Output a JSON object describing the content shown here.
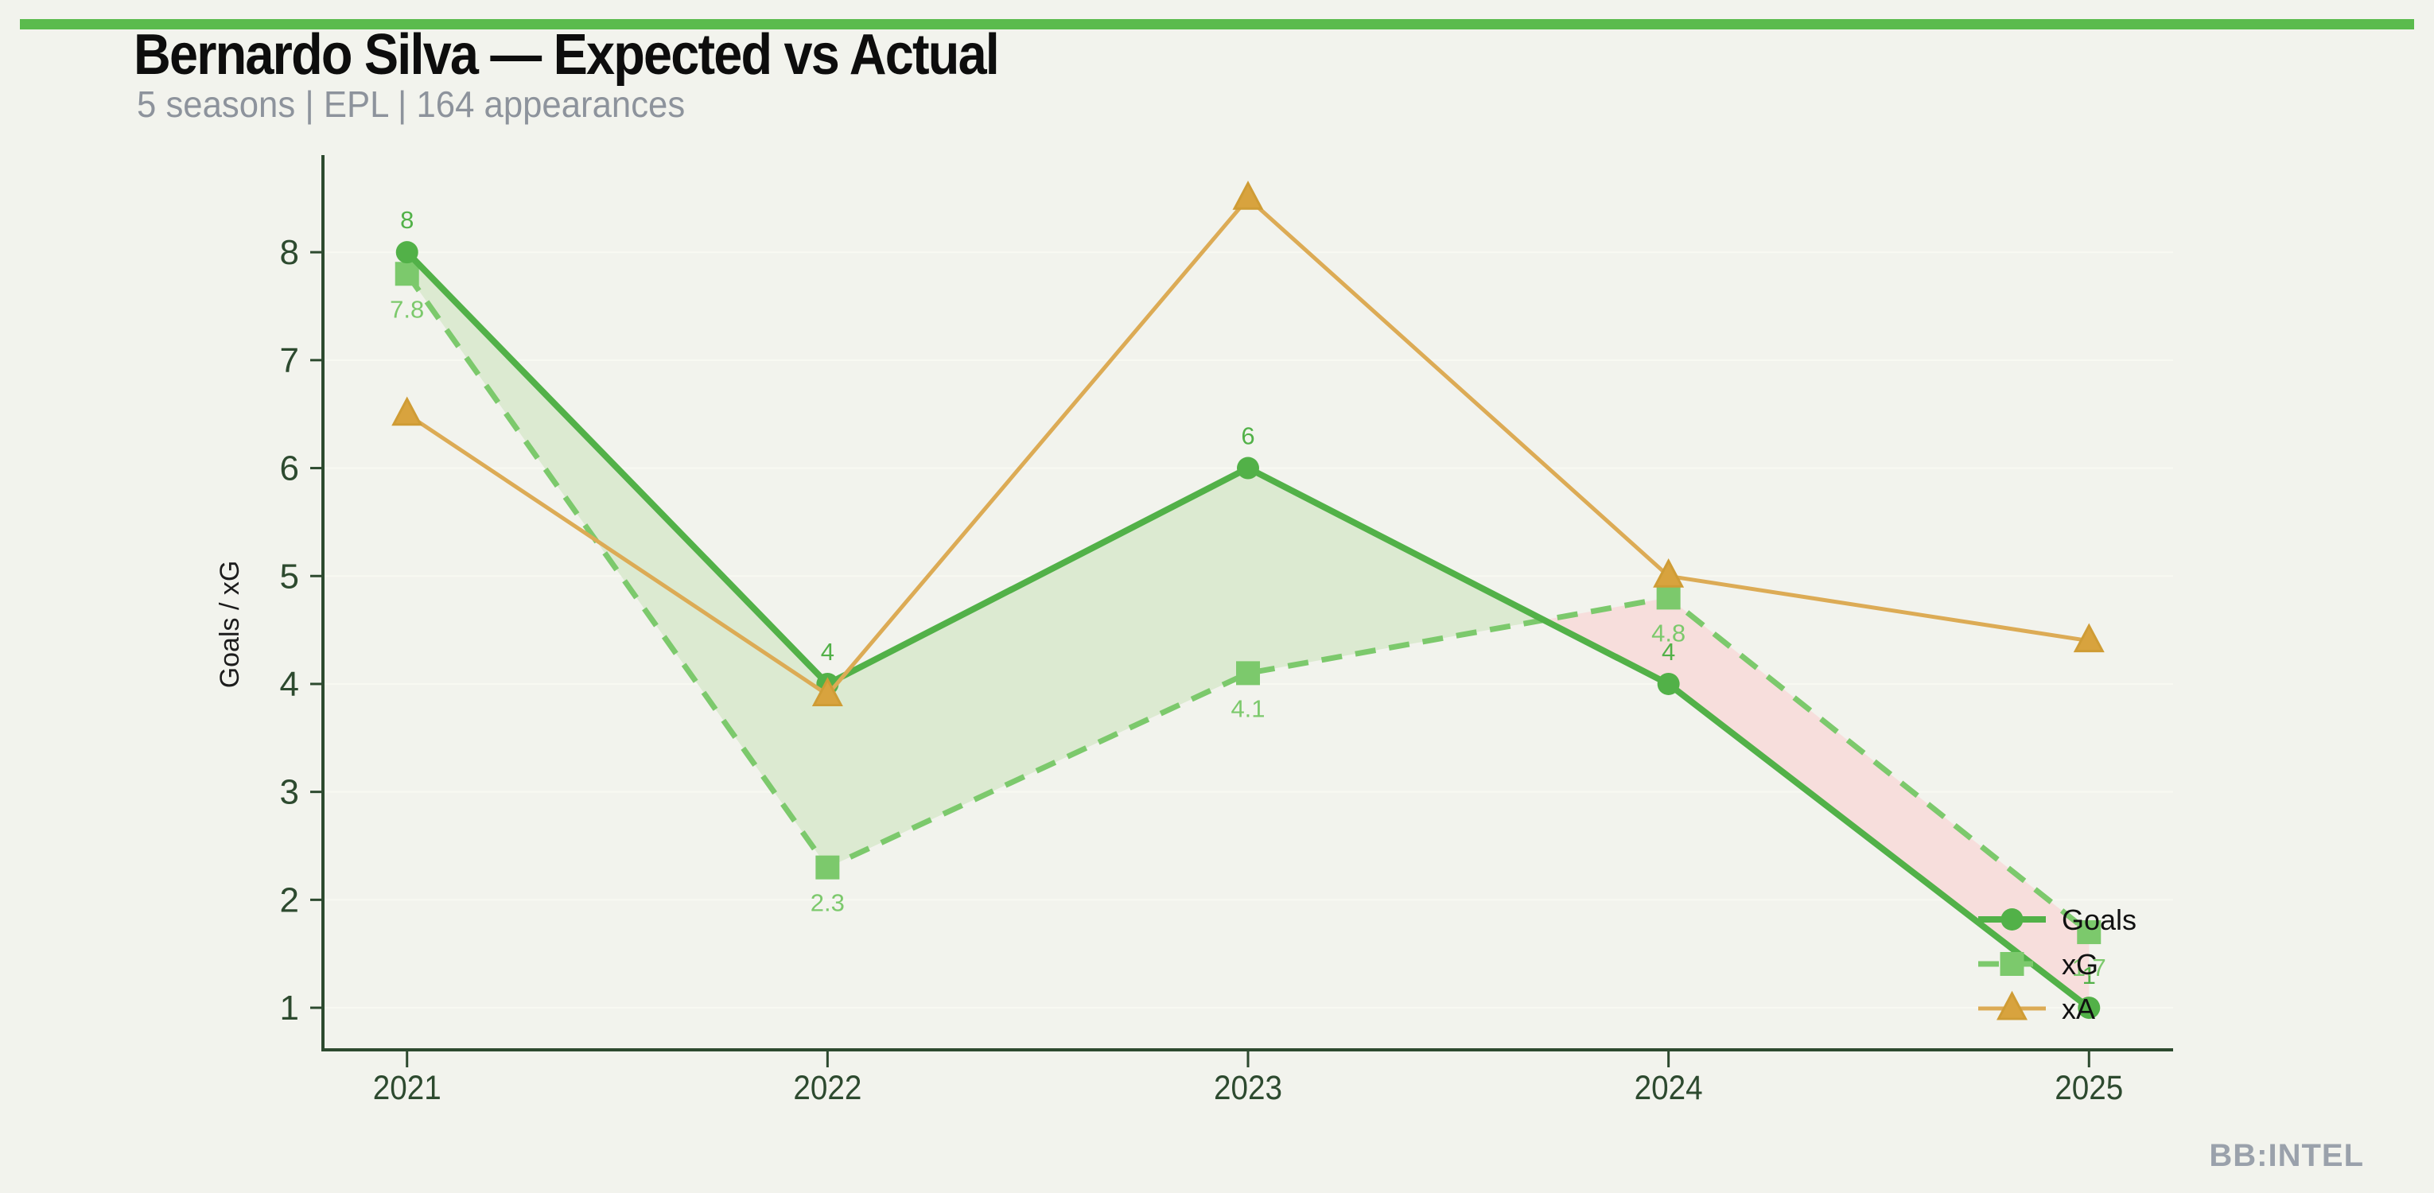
{
  "page": {
    "background": "#f2f3ed",
    "accent_bar_color": "#5bbb4d"
  },
  "header": {
    "title": "Bernardo Silva — Expected vs Actual",
    "subtitle": "5 seasons | EPL | 164 appearances"
  },
  "footer": {
    "brand": "BB:INTEL"
  },
  "chart_data": {
    "type": "line",
    "title": "Bernardo Silva — Expected vs Actual",
    "x": [
      2021,
      2022,
      2023,
      2024,
      2025
    ],
    "x_tick_labels": [
      "2021",
      "2022",
      "2023",
      "2024",
      "2025"
    ],
    "y_ticks": [
      1,
      2,
      3,
      4,
      5,
      6,
      7,
      8
    ],
    "ylabel": "Goals / xG",
    "xlabel": "",
    "xlim": [
      2020.8,
      2025.2
    ],
    "ylim": [
      0.61,
      8.9
    ],
    "grid": "faint-horizontal",
    "legend_position": "lower-right-inside",
    "axis_color": "#2d4a2f",
    "tick_label_color": "#2d4a2f",
    "grid_color": "#f8f9f2",
    "ylabel_color": "#1c1c1c",
    "legend_text_color": "#111111",
    "series": [
      {
        "name": "Goals",
        "values": [
          8,
          4,
          6,
          4,
          1
        ],
        "labels": [
          "8",
          "4",
          "6",
          "4",
          "1"
        ],
        "color": "#52b148",
        "line_style": "solid",
        "marker": "circle",
        "label_position": "above"
      },
      {
        "name": "xG",
        "values": [
          7.8,
          2.3,
          4.1,
          4.8,
          1.7
        ],
        "labels": [
          "7.8",
          "2.3",
          "4.1",
          "4.8",
          "1.7"
        ],
        "color": "#7cc96c",
        "line_style": "dashed",
        "marker": "square",
        "label_position": "below"
      },
      {
        "name": "xA",
        "values": [
          6.5,
          3.9,
          8.5,
          5.0,
          4.4
        ],
        "labels": [],
        "color": "#dcab55",
        "marker_fill": "#d8a33e",
        "marker_edge": "#cf9c35",
        "line_style": "solid",
        "marker": "triangle",
        "label_position": "none"
      }
    ],
    "fill_between": {
      "series_a": "Goals",
      "series_b": "xG",
      "positive_color": "#dcead1",
      "negative_color": "#f7dedc"
    }
  }
}
